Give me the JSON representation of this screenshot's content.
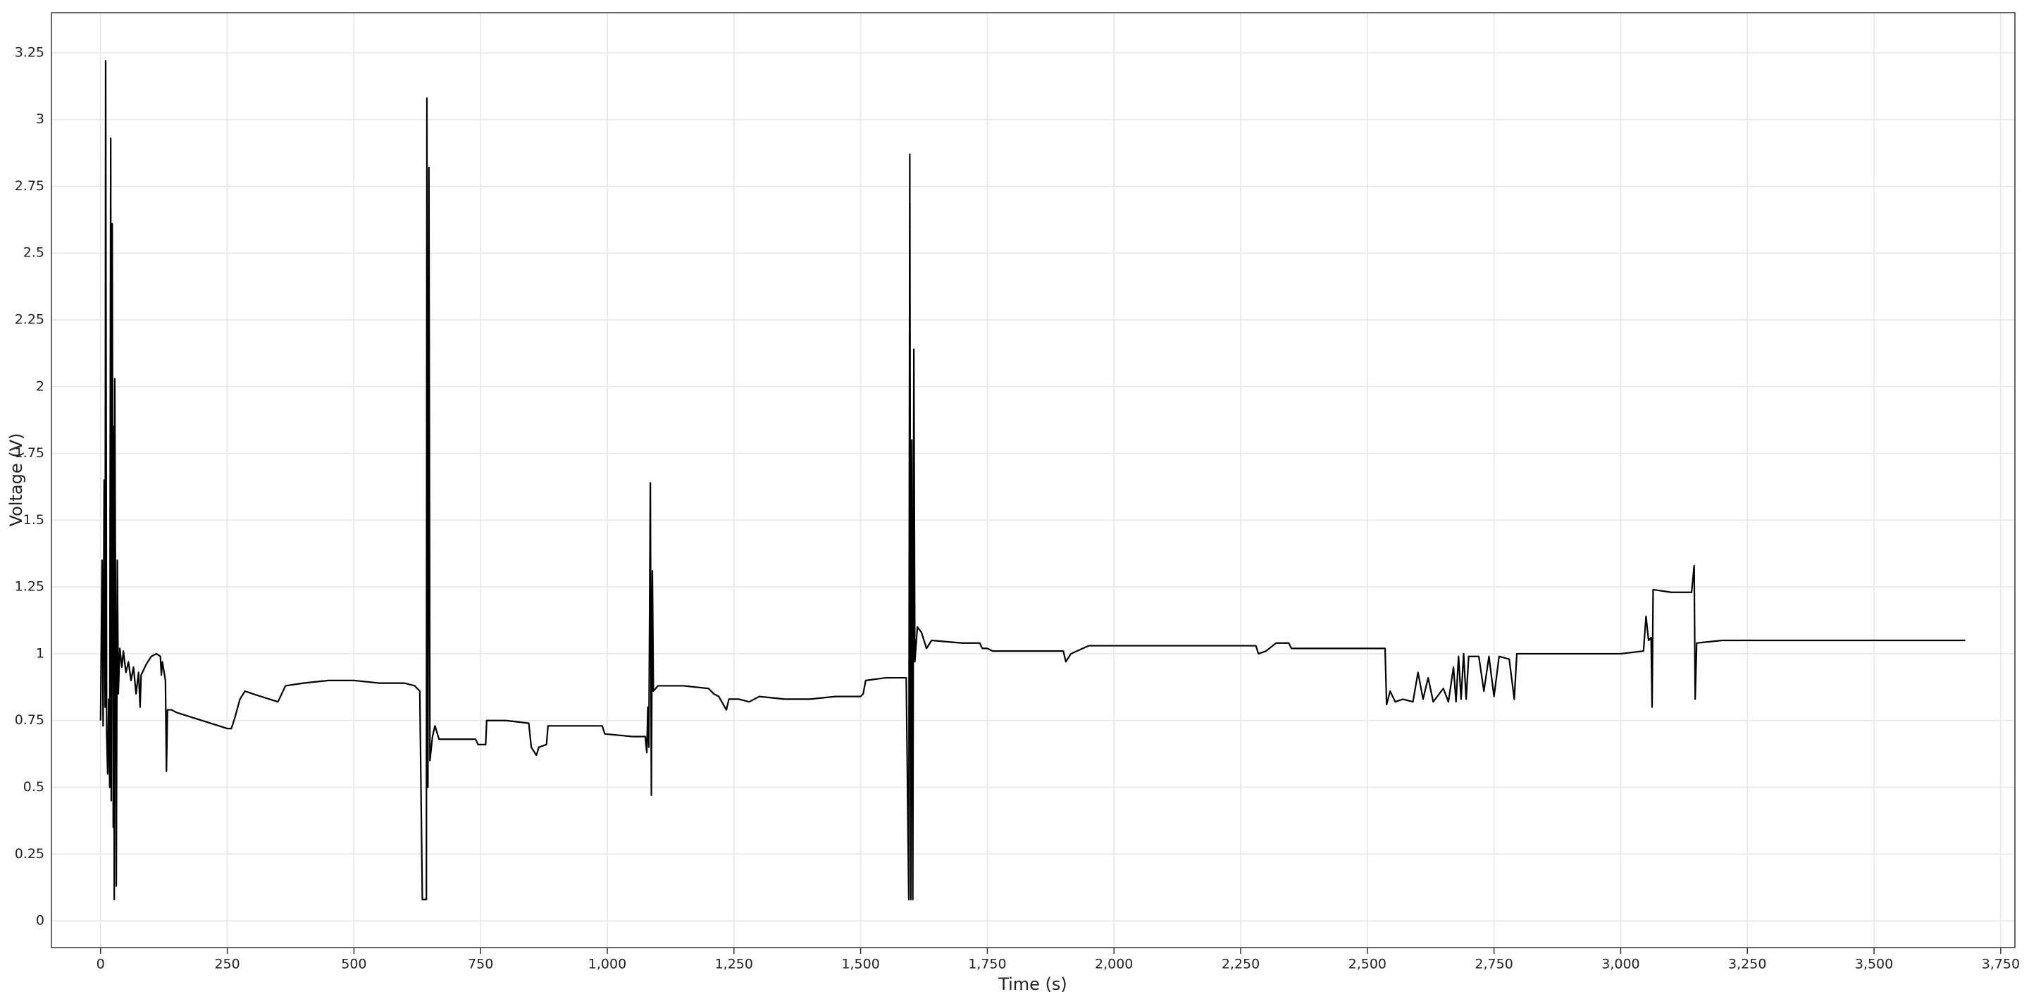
{
  "chart_data": {
    "type": "line",
    "xlabel": "Time (s)",
    "ylabel": "Voltage (V)",
    "color": "#000000",
    "grid": true,
    "xlim": [
      -97,
      3778
    ],
    "ylim": [
      -0.1,
      3.4
    ],
    "xticks": [
      0,
      250,
      500,
      750,
      {
        "value": 1000,
        "label": "1,000"
      },
      {
        "value": 1250,
        "label": "1,250"
      },
      {
        "value": 1500,
        "label": "1,500"
      },
      {
        "value": 1750,
        "label": "1,750"
      },
      {
        "value": 2000,
        "label": "2,000"
      },
      {
        "value": 2250,
        "label": "2,250"
      },
      {
        "value": 2500,
        "label": "2,500"
      },
      {
        "value": 2750,
        "label": "2,750"
      },
      {
        "value": 3000,
        "label": "3,000"
      },
      {
        "value": 3250,
        "label": "3,250"
      },
      {
        "value": 3500,
        "label": "3,500"
      },
      {
        "value": 3750,
        "label": "3,750"
      }
    ],
    "yticks": [
      0,
      0.25,
      0.5,
      0.75,
      1,
      1.25,
      1.5,
      1.75,
      2,
      2.25,
      2.5,
      2.75,
      3,
      3.25
    ],
    "x": [
      0,
      3,
      5,
      7,
      9,
      10,
      12,
      14,
      16,
      18,
      20,
      21,
      23,
      25,
      26,
      27,
      28,
      30,
      31,
      33,
      35,
      38,
      42,
      45,
      50,
      55,
      60,
      65,
      70,
      75,
      78,
      80,
      90,
      100,
      110,
      118,
      120,
      122,
      128,
      130,
      132,
      140,
      150,
      200,
      250,
      258,
      265,
      275,
      285,
      300,
      350,
      355,
      365,
      400,
      450,
      500,
      550,
      600,
      620,
      630,
      635,
      643,
      644,
      646,
      648,
      650,
      655,
      660,
      668,
      700,
      740,
      745,
      760,
      762,
      800,
      845,
      850,
      860,
      865,
      880,
      883,
      950,
      990,
      995,
      1050,
      1075,
      1078,
      1080,
      1082,
      1085,
      1087,
      1089,
      1091,
      1100,
      1150,
      1200,
      1210,
      1220,
      1235,
      1240,
      1260,
      1280,
      1300,
      1350,
      1400,
      1450,
      1500,
      1505,
      1510,
      1550,
      1590,
      1595,
      1597,
      1599,
      1601,
      1603,
      1605,
      1607,
      1612,
      1620,
      1630,
      1640,
      1700,
      1735,
      1740,
      1750,
      1760,
      1900,
      1905,
      1915,
      1950,
      2000,
      2100,
      2200,
      2280,
      2285,
      2300,
      2320,
      2345,
      2350,
      2500,
      2535,
      2538,
      2545,
      2555,
      2570,
      2590,
      2600,
      2610,
      2620,
      2630,
      2650,
      2660,
      2670,
      2675,
      2680,
      2685,
      2690,
      2695,
      2700,
      2720,
      2730,
      2740,
      2750,
      2760,
      2780,
      2790,
      2795,
      2850,
      2900,
      2950,
      3000,
      3045,
      3050,
      3055,
      3060,
      3062,
      3064,
      3100,
      3140,
      3145,
      3147,
      3150,
      3200,
      3300,
      3400,
      3500,
      3600,
      3680
    ],
    "values": [
      0.75,
      1.35,
      0.73,
      1.65,
      0.8,
      3.22,
      0.7,
      0.55,
      0.83,
      0.5,
      2.93,
      0.45,
      2.61,
      0.35,
      1.85,
      0.08,
      2.03,
      0.9,
      0.13,
      1.35,
      0.85,
      1.02,
      0.95,
      1.01,
      0.93,
      0.97,
      0.9,
      0.95,
      0.85,
      0.93,
      0.8,
      0.92,
      0.96,
      0.99,
      1.0,
      0.99,
      0.92,
      0.97,
      0.9,
      0.56,
      0.79,
      0.79,
      0.78,
      0.75,
      0.72,
      0.72,
      0.76,
      0.83,
      0.86,
      0.85,
      0.82,
      0.84,
      0.88,
      0.89,
      0.9,
      0.9,
      0.89,
      0.89,
      0.88,
      0.86,
      0.08,
      0.08,
      3.08,
      0.5,
      2.82,
      0.6,
      0.69,
      0.73,
      0.68,
      0.68,
      0.68,
      0.66,
      0.66,
      0.75,
      0.75,
      0.74,
      0.65,
      0.62,
      0.65,
      0.66,
      0.73,
      0.73,
      0.73,
      0.7,
      0.69,
      0.69,
      0.63,
      0.8,
      0.65,
      1.64,
      0.47,
      1.31,
      0.86,
      0.88,
      0.88,
      0.87,
      0.85,
      0.84,
      0.79,
      0.83,
      0.83,
      0.82,
      0.84,
      0.83,
      0.83,
      0.84,
      0.84,
      0.85,
      0.9,
      0.91,
      0.91,
      0.08,
      2.87,
      0.08,
      1.8,
      0.08,
      2.14,
      0.97,
      1.1,
      1.08,
      1.02,
      1.05,
      1.04,
      1.04,
      1.02,
      1.02,
      1.01,
      1.01,
      0.97,
      1.0,
      1.03,
      1.03,
      1.03,
      1.03,
      1.03,
      1.0,
      1.01,
      1.04,
      1.04,
      1.02,
      1.02,
      1.02,
      0.81,
      0.86,
      0.82,
      0.83,
      0.82,
      0.93,
      0.83,
      0.91,
      0.82,
      0.87,
      0.82,
      0.95,
      0.82,
      0.99,
      0.83,
      1.0,
      0.83,
      0.99,
      0.99,
      0.86,
      0.99,
      0.84,
      0.99,
      0.98,
      0.83,
      1.0,
      1.0,
      1.0,
      1.0,
      1.0,
      1.01,
      1.14,
      1.05,
      1.06,
      0.8,
      1.24,
      1.23,
      1.23,
      1.33,
      0.83,
      1.04,
      1.05,
      1.05,
      1.05,
      1.05,
      1.05,
      1.05
    ]
  }
}
